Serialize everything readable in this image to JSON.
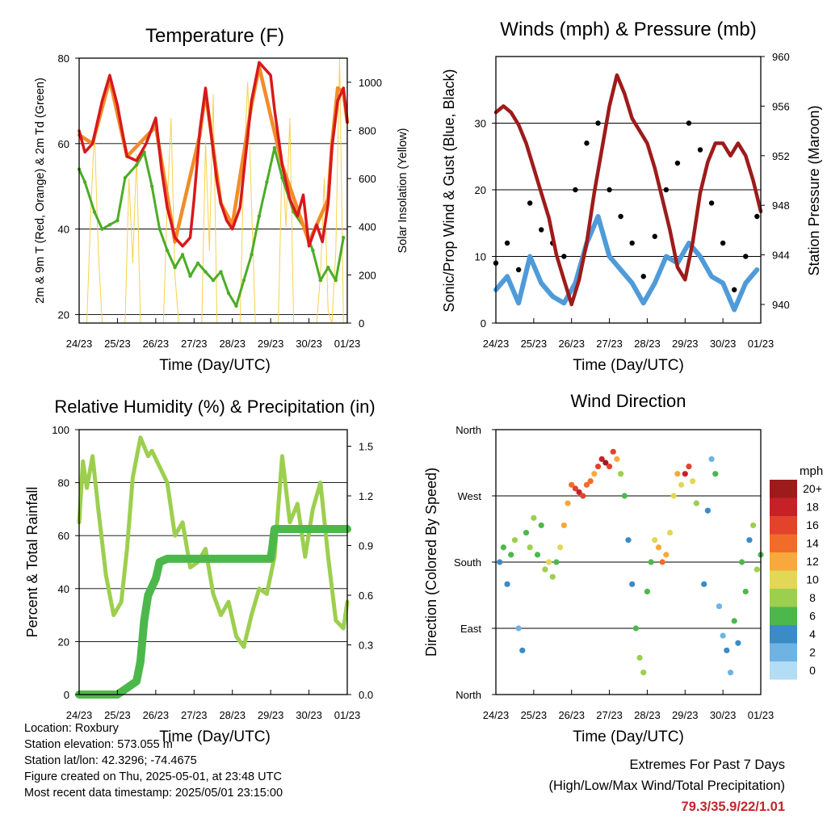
{
  "x_tick_labels": [
    "24/23",
    "25/23",
    "26/23",
    "27/23",
    "28/23",
    "29/23",
    "30/23",
    "01/23"
  ],
  "colors": {
    "temp2m": "#d7191c",
    "temp9m": "#f28c28",
    "dewpoint": "#4dac26",
    "solar": "#f7d14a",
    "sonic": "#4f9bd9",
    "gust": "#000000",
    "pressure": "#9e1b1b",
    "rh": "#9ccf4e",
    "precip": "#4cb84c",
    "extremes": "#c0272d"
  },
  "chart_data": [
    {
      "type": "line",
      "title": "Temperature (F)",
      "xlabel": "Time (Day/UTC)",
      "ylabel": "2m & 9m T (Red, Orange) & 2m Td (Green)",
      "ylabel_right": "Solar Insolation (Yellow)",
      "ylim": [
        18,
        80
      ],
      "yticks": [
        20,
        40,
        60,
        80
      ],
      "ylim_right": [
        0,
        1100
      ],
      "yticks_right": [
        0,
        200,
        400,
        600,
        800,
        1000
      ],
      "grid": true,
      "series": [
        {
          "key": "temp2m",
          "x": [
            0,
            0.15,
            0.35,
            0.6,
            0.8,
            1.0,
            1.1,
            1.25,
            1.5,
            1.75,
            2.0,
            2.15,
            2.3,
            2.5,
            2.7,
            2.9,
            3.0,
            3.15,
            3.3,
            3.6,
            3.7,
            3.85,
            4.0,
            4.2,
            4.5,
            4.7,
            5.0,
            5.1,
            5.3,
            5.5,
            5.7,
            5.85,
            6.0,
            6.2,
            6.35,
            6.5,
            6.6,
            6.75,
            6.9,
            7.0
          ],
          "y": [
            63,
            58,
            60,
            70,
            76,
            69,
            64,
            57,
            56,
            60,
            66,
            54,
            45,
            38,
            36,
            38,
            47,
            63,
            73,
            51,
            46,
            42,
            40,
            45,
            70,
            79,
            76,
            68,
            55,
            47,
            43,
            48,
            36,
            41,
            37,
            46,
            59,
            70,
            73,
            65
          ]
        },
        {
          "key": "temp9m",
          "x": [
            0,
            0.35,
            0.8,
            1.25,
            2.0,
            2.5,
            3.15,
            3.3,
            3.7,
            4.0,
            4.5,
            4.7,
            5.3,
            6.0,
            6.5,
            6.6,
            6.75,
            6.9,
            7.0
          ],
          "y": [
            62,
            60,
            75,
            57,
            64,
            37,
            62,
            72,
            46,
            41,
            69,
            78,
            55,
            37,
            47,
            60,
            73,
            72,
            65
          ]
        },
        {
          "key": "dewpoint",
          "x": [
            0,
            0.15,
            0.4,
            0.6,
            0.8,
            1.0,
            1.2,
            1.5,
            1.7,
            1.9,
            2.1,
            2.3,
            2.5,
            2.7,
            2.9,
            3.1,
            3.3,
            3.5,
            3.7,
            3.9,
            4.1,
            4.3,
            4.5,
            4.7,
            4.9,
            5.1,
            5.3,
            5.6,
            5.9,
            6.1,
            6.3,
            6.5,
            6.7,
            6.9
          ],
          "y": [
            54,
            51,
            44,
            40,
            41,
            42,
            52,
            55,
            58,
            50,
            40,
            35,
            31,
            34,
            29,
            32,
            30,
            28,
            30,
            25,
            22,
            28,
            34,
            43,
            51,
            59,
            52,
            44,
            40,
            35,
            28,
            31,
            28,
            38
          ]
        },
        {
          "key": "solar",
          "axis": "right",
          "x": [
            0.2,
            0.3,
            0.4,
            0.5,
            0.6,
            1.2,
            1.3,
            1.4,
            1.5,
            1.6,
            2.2,
            2.3,
            2.4,
            2.5,
            2.6,
            3.2,
            3.3,
            3.4,
            3.5,
            3.6,
            4.2,
            4.3,
            4.4,
            4.5,
            4.6,
            5.2,
            5.3,
            5.4,
            5.5,
            5.6,
            6.2,
            6.3,
            6.4,
            6.5,
            6.6,
            6.7,
            6.8,
            6.9
          ],
          "y": [
            0,
            450,
            800,
            300,
            0,
            0,
            600,
            250,
            700,
            0,
            0,
            500,
            850,
            200,
            0,
            0,
            750,
            300,
            950,
            0,
            0,
            650,
            1000,
            500,
            0,
            0,
            700,
            400,
            850,
            0,
            0,
            200,
            600,
            50,
            0,
            300,
            1100,
            0
          ]
        }
      ]
    },
    {
      "type": "scatter",
      "title": "Winds (mph) & Pressure (mb)",
      "xlabel": "Time (Day/UTC)",
      "ylabel": "Sonic/Prop Wind & Gust (Blue, Black)",
      "ylabel_right": "Station Pressure (Maroon)",
      "ylim": [
        0,
        40
      ],
      "yticks": [
        0,
        10,
        20,
        30
      ],
      "ylim_right": [
        938.5,
        960
      ],
      "yticks_right": [
        940,
        944,
        948,
        952,
        956,
        960
      ],
      "grid": true,
      "series": [
        {
          "key": "pressure",
          "axis": "right",
          "x": [
            0,
            0.2,
            0.4,
            0.6,
            0.8,
            1.0,
            1.2,
            1.4,
            1.6,
            1.8,
            2.0,
            2.2,
            2.4,
            2.6,
            2.8,
            3.0,
            3.2,
            3.4,
            3.6,
            3.8,
            4.0,
            4.2,
            4.4,
            4.6,
            4.8,
            5.0,
            5.2,
            5.4,
            5.6,
            5.8,
            6.0,
            6.2,
            6.4,
            6.6,
            6.8,
            7.0
          ],
          "y": [
            955.5,
            956,
            955.5,
            954.5,
            953,
            951,
            949,
            947,
            944,
            942,
            940,
            942,
            945,
            949,
            952.5,
            956,
            958.5,
            957,
            955,
            954,
            953,
            951,
            948.5,
            946,
            943,
            942,
            945,
            949,
            951.5,
            953,
            953,
            952,
            953,
            952,
            950,
            947.5
          ]
        },
        {
          "key": "sonic",
          "x": [
            0,
            0.3,
            0.6,
            0.9,
            1.2,
            1.5,
            1.8,
            2.1,
            2.4,
            2.7,
            3.0,
            3.3,
            3.6,
            3.9,
            4.2,
            4.5,
            4.8,
            5.1,
            5.4,
            5.7,
            6.0,
            6.3,
            6.6,
            6.9
          ],
          "y": [
            5,
            7,
            3,
            10,
            6,
            4,
            3,
            6,
            12,
            16,
            10,
            8,
            6,
            3,
            6,
            10,
            9,
            12,
            10,
            7,
            6,
            2,
            6,
            8
          ]
        },
        {
          "key": "gust",
          "x": [
            0,
            0.3,
            0.6,
            0.9,
            1.2,
            1.5,
            1.8,
            2.1,
            2.4,
            2.7,
            3.0,
            3.3,
            3.6,
            3.9,
            4.2,
            4.5,
            4.8,
            5.1,
            5.4,
            5.7,
            6.0,
            6.3,
            6.6,
            6.9
          ],
          "y": [
            9,
            12,
            8,
            18,
            14,
            12,
            10,
            20,
            27,
            30,
            20,
            16,
            12,
            7,
            13,
            20,
            24,
            30,
            26,
            18,
            12,
            5,
            10,
            16
          ]
        }
      ]
    },
    {
      "type": "line",
      "title": "Relative Humidity (%) & Precipitation (in)",
      "xlabel": "Time (Day/UTC)",
      "ylabel": "Percent & Total Rainfall",
      "ylim": [
        0,
        100
      ],
      "yticks": [
        0,
        20,
        40,
        60,
        80,
        100
      ],
      "ylim_right": [
        0,
        1.6
      ],
      "yticks_right": [
        "0.0",
        "0.3",
        "0.6",
        "0.9",
        "1.2",
        "1.5"
      ],
      "grid": true,
      "series": [
        {
          "key": "rh",
          "x": [
            0,
            0.1,
            0.2,
            0.35,
            0.5,
            0.7,
            0.9,
            1.1,
            1.25,
            1.4,
            1.6,
            1.8,
            1.9,
            2.1,
            2.3,
            2.5,
            2.7,
            2.9,
            3.1,
            3.3,
            3.5,
            3.7,
            3.9,
            4.1,
            4.3,
            4.5,
            4.7,
            4.9,
            5.1,
            5.3,
            5.5,
            5.7,
            5.9,
            6.1,
            6.3,
            6.5,
            6.7,
            6.9,
            7.0
          ],
          "y": [
            65,
            88,
            78,
            90,
            70,
            45,
            30,
            35,
            55,
            82,
            97,
            90,
            92,
            86,
            80,
            60,
            65,
            48,
            50,
            55,
            38,
            30,
            35,
            22,
            18,
            30,
            40,
            38,
            52,
            90,
            65,
            72,
            52,
            70,
            80,
            52,
            28,
            25,
            35
          ]
        },
        {
          "key": "precip",
          "axis": "right",
          "x": [
            0,
            0.5,
            1.0,
            1.5,
            1.6,
            1.7,
            1.8,
            1.9,
            2.0,
            2.1,
            2.3,
            3.0,
            4.0,
            5.0,
            5.05,
            5.1,
            5.3,
            6.0,
            7.0
          ],
          "y": [
            0,
            0,
            0,
            0.08,
            0.2,
            0.45,
            0.6,
            0.65,
            0.7,
            0.8,
            0.82,
            0.82,
            0.82,
            0.82,
            0.9,
            1.0,
            1.0,
            1.0,
            1.0
          ]
        }
      ]
    },
    {
      "type": "scatter",
      "title": "Wind Direction",
      "xlabel": "Time (Day/UTC)",
      "ylabel": "Direction (Colored By Speed)",
      "ylim": [
        0,
        360
      ],
      "yticks": [
        "North",
        "East",
        "South",
        "West",
        "North"
      ],
      "colorbar_title": "mph",
      "colorbar_labels": [
        "20+",
        "18",
        "16",
        "14",
        "12",
        "10",
        "8",
        "6",
        "4",
        "2",
        "0"
      ],
      "colorbar_colors": [
        "#9e1b1b",
        "#c62127",
        "#e2432a",
        "#f26c29",
        "#f8a83c",
        "#e2d757",
        "#9ccf4e",
        "#4cb84c",
        "#3b8bc6",
        "#6fb3e3",
        "#b3dcf5"
      ],
      "points": [
        {
          "x": 0.1,
          "y": 180,
          "s": 4
        },
        {
          "x": 0.2,
          "y": 200,
          "s": 6
        },
        {
          "x": 0.3,
          "y": 150,
          "s": 3
        },
        {
          "x": 0.4,
          "y": 190,
          "s": 5
        },
        {
          "x": 0.5,
          "y": 210,
          "s": 8
        },
        {
          "x": 0.6,
          "y": 90,
          "s": 2
        },
        {
          "x": 0.7,
          "y": 60,
          "s": 3
        },
        {
          "x": 0.8,
          "y": 220,
          "s": 5
        },
        {
          "x": 0.9,
          "y": 200,
          "s": 7
        },
        {
          "x": 1.0,
          "y": 240,
          "s": 8
        },
        {
          "x": 1.1,
          "y": 190,
          "s": 6
        },
        {
          "x": 1.2,
          "y": 230,
          "s": 5
        },
        {
          "x": 1.3,
          "y": 170,
          "s": 7
        },
        {
          "x": 1.4,
          "y": 180,
          "s": 9
        },
        {
          "x": 1.5,
          "y": 160,
          "s": 8
        },
        {
          "x": 1.6,
          "y": 180,
          "s": 6
        },
        {
          "x": 1.7,
          "y": 200,
          "s": 10
        },
        {
          "x": 1.8,
          "y": 230,
          "s": 11
        },
        {
          "x": 1.9,
          "y": 260,
          "s": 12
        },
        {
          "x": 2.0,
          "y": 285,
          "s": 14
        },
        {
          "x": 2.1,
          "y": 280,
          "s": 16
        },
        {
          "x": 2.2,
          "y": 275,
          "s": 18
        },
        {
          "x": 2.3,
          "y": 270,
          "s": 15
        },
        {
          "x": 2.4,
          "y": 285,
          "s": 13
        },
        {
          "x": 2.5,
          "y": 290,
          "s": 14
        },
        {
          "x": 2.6,
          "y": 300,
          "s": 12
        },
        {
          "x": 2.7,
          "y": 310,
          "s": 16
        },
        {
          "x": 2.8,
          "y": 320,
          "s": 18
        },
        {
          "x": 2.9,
          "y": 315,
          "s": 20
        },
        {
          "x": 3.0,
          "y": 310,
          "s": 15
        },
        {
          "x": 3.1,
          "y": 330,
          "s": 16
        },
        {
          "x": 3.2,
          "y": 320,
          "s": 12
        },
        {
          "x": 3.3,
          "y": 300,
          "s": 8
        },
        {
          "x": 3.4,
          "y": 270,
          "s": 6
        },
        {
          "x": 3.5,
          "y": 210,
          "s": 4
        },
        {
          "x": 3.6,
          "y": 150,
          "s": 3
        },
        {
          "x": 3.7,
          "y": 90,
          "s": 5
        },
        {
          "x": 3.8,
          "y": 50,
          "s": 7
        },
        {
          "x": 3.9,
          "y": 30,
          "s": 8
        },
        {
          "x": 4.0,
          "y": 140,
          "s": 5
        },
        {
          "x": 4.1,
          "y": 180,
          "s": 6
        },
        {
          "x": 4.2,
          "y": 210,
          "s": 9
        },
        {
          "x": 4.3,
          "y": 200,
          "s": 12
        },
        {
          "x": 4.4,
          "y": 180,
          "s": 14
        },
        {
          "x": 4.5,
          "y": 190,
          "s": 11
        },
        {
          "x": 4.6,
          "y": 220,
          "s": 10
        },
        {
          "x": 4.7,
          "y": 270,
          "s": 9
        },
        {
          "x": 4.8,
          "y": 300,
          "s": 12
        },
        {
          "x": 4.9,
          "y": 285,
          "s": 10
        },
        {
          "x": 5.0,
          "y": 300,
          "s": 18
        },
        {
          "x": 5.1,
          "y": 310,
          "s": 16
        },
        {
          "x": 5.2,
          "y": 290,
          "s": 10
        },
        {
          "x": 5.3,
          "y": 260,
          "s": 7
        },
        {
          "x": 5.5,
          "y": 150,
          "s": 3
        },
        {
          "x": 5.6,
          "y": 250,
          "s": 4
        },
        {
          "x": 5.7,
          "y": 320,
          "s": 2
        },
        {
          "x": 5.8,
          "y": 300,
          "s": 6
        },
        {
          "x": 5.9,
          "y": 120,
          "s": 2
        },
        {
          "x": 6.0,
          "y": 80,
          "s": 1
        },
        {
          "x": 6.1,
          "y": 60,
          "s": 3
        },
        {
          "x": 6.2,
          "y": 30,
          "s": 2
        },
        {
          "x": 6.3,
          "y": 100,
          "s": 5
        },
        {
          "x": 6.4,
          "y": 70,
          "s": 4
        },
        {
          "x": 6.5,
          "y": 180,
          "s": 6
        },
        {
          "x": 6.6,
          "y": 140,
          "s": 5
        },
        {
          "x": 6.7,
          "y": 210,
          "s": 4
        },
        {
          "x": 6.8,
          "y": 230,
          "s": 7
        },
        {
          "x": 6.9,
          "y": 170,
          "s": 8
        },
        {
          "x": 7.0,
          "y": 190,
          "s": 6
        }
      ]
    }
  ],
  "station_info": {
    "location": "Location: Roxbury",
    "elevation": "Station elevation: 573.055 m",
    "latlon": "Station lat/lon: 42.3296; -74.4675",
    "created": "Figure created on Thu, 2025-05-01, at 23:48 UTC",
    "recent": "Most recent data timestamp: 2025/05/01 23:15:00"
  },
  "extremes": {
    "title": "Extremes For Past 7 Days",
    "subtitle": "(High/Low/Max Wind/Total Precipitation)",
    "values": "79.3/35.9/22/1.01"
  }
}
